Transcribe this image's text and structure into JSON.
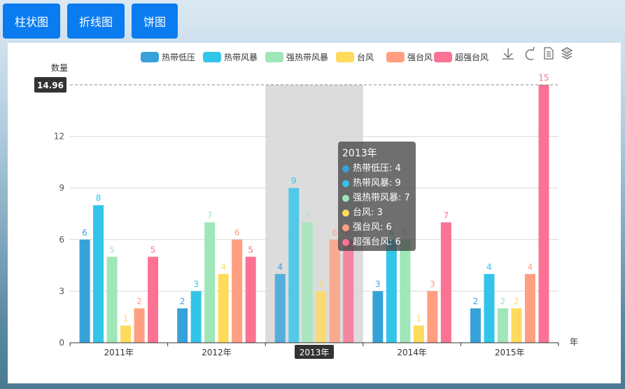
{
  "buttons": {
    "bar": "柱状图",
    "line": "折线图",
    "pie": "饼图"
  },
  "toolbox": [
    "download-icon",
    "refresh-icon",
    "data-view-icon",
    "layers-icon"
  ],
  "chart_data": {
    "type": "bar",
    "categories": [
      "2011年",
      "2012年",
      "2013年",
      "2014年",
      "2015年"
    ],
    "series": [
      {
        "name": "热带低压",
        "color": "#37a2da",
        "values": [
          6,
          2,
          4,
          3,
          2
        ]
      },
      {
        "name": "热带风暴",
        "color": "#32c5e9",
        "values": [
          8,
          3,
          9,
          6,
          4
        ]
      },
      {
        "name": "强热带风暴",
        "color": "#9fe6b8",
        "values": [
          5,
          7,
          7,
          6,
          2
        ]
      },
      {
        "name": "台风",
        "color": "#ffdb5c",
        "values": [
          1,
          4,
          3,
          1,
          2
        ]
      },
      {
        "name": "强台风",
        "color": "#ff9f7f",
        "values": [
          2,
          6,
          6,
          3,
          4
        ]
      },
      {
        "name": "超强台风",
        "color": "#fb7293",
        "values": [
          5,
          5,
          6,
          7,
          15
        ]
      }
    ],
    "xlabel": "年",
    "ylabel": "数量",
    "ylim": [
      0,
      15
    ],
    "yticks": [
      0,
      3,
      6,
      9,
      12
    ],
    "axis_pointer_value": "14.96",
    "highlighted_category": "2013年",
    "legend_position": "top",
    "grid": true,
    "tooltip": {
      "title": "2013年",
      "rows": [
        "热带低压: 4",
        "热带风暴: 9",
        "强热带风暴: 7",
        "台风: 3",
        "强台风: 6",
        "超强台风: 6"
      ]
    }
  }
}
